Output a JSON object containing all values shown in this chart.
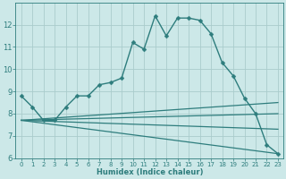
{
  "xlabel": "Humidex (Indice chaleur)",
  "bg_color": "#cce8e8",
  "line_color": "#2e7d7d",
  "grid_color": "#aacccc",
  "xlim": [
    -0.5,
    23.5
  ],
  "ylim": [
    6,
    13
  ],
  "yticks": [
    6,
    7,
    8,
    9,
    10,
    11,
    12
  ],
  "xticks": [
    0,
    1,
    2,
    3,
    4,
    5,
    6,
    7,
    8,
    9,
    10,
    11,
    12,
    13,
    14,
    15,
    16,
    17,
    18,
    19,
    20,
    21,
    22,
    23
  ],
  "series": [
    {
      "x": [
        0,
        1,
        2,
        3,
        4,
        5,
        6,
        7,
        8,
        9,
        10,
        11,
        12,
        13,
        14,
        15,
        16,
        17,
        18,
        19,
        20,
        21,
        22,
        23
      ],
      "y": [
        8.8,
        8.3,
        7.7,
        7.7,
        8.3,
        8.8,
        8.8,
        9.3,
        9.4,
        9.6,
        11.2,
        10.9,
        12.4,
        11.5,
        12.3,
        12.3,
        12.2,
        11.6,
        10.3,
        9.7,
        8.7,
        8.0,
        6.6,
        6.2
      ],
      "marker": "D",
      "markersize": 2.5,
      "linewidth": 1.0,
      "has_markers": true
    },
    {
      "x": [
        0,
        23
      ],
      "y": [
        7.7,
        8.5
      ],
      "linewidth": 0.9,
      "has_markers": false
    },
    {
      "x": [
        0,
        23
      ],
      "y": [
        7.7,
        8.0
      ],
      "linewidth": 0.9,
      "has_markers": false
    },
    {
      "x": [
        0,
        23
      ],
      "y": [
        7.7,
        7.3
      ],
      "linewidth": 0.9,
      "has_markers": false
    },
    {
      "x": [
        0,
        23
      ],
      "y": [
        7.7,
        6.2
      ],
      "linewidth": 0.9,
      "has_markers": false
    }
  ]
}
